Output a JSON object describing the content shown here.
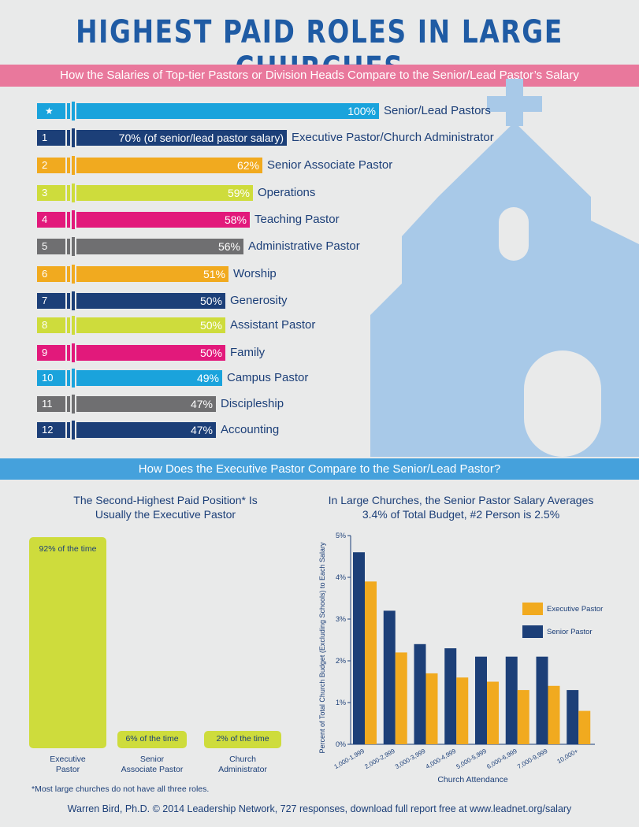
{
  "title": "HIGHEST PAID ROLES IN LARGE CHURCHES",
  "subtitle": "How the Salaries of Top-tier Pastors or Division Heads Compare to the Senior/Lead Pastor’s Salary",
  "colors": {
    "blue": "#1aa3dc",
    "navy": "#1c3f78",
    "orange": "#f1aa1f",
    "lime": "#cedc3c",
    "pink": "#e2197b",
    "gray": "#6f6f71",
    "band_pink": "#e9789c",
    "band_blue": "#45a1dc",
    "church": "#a8c9e8"
  },
  "roles": [
    {
      "rank": "★",
      "value": 100,
      "value_label": "100%",
      "label": "Senior/Lead Pastors",
      "color": "#1aa3dc"
    },
    {
      "rank": "1",
      "value": 70,
      "value_label": "70% (of senior/lead pastor salary)",
      "label": "Executive Pastor/Church Administrator",
      "color": "#1c3f78"
    },
    {
      "rank": "2",
      "value": 62,
      "value_label": "62%",
      "label": "Senior Associate Pastor",
      "color": "#f1aa1f"
    },
    {
      "rank": "3",
      "value": 59,
      "value_label": "59%",
      "label": "Operations",
      "color": "#cedc3c"
    },
    {
      "rank": "4",
      "value": 58,
      "value_label": "58%",
      "label": "Teaching Pastor",
      "color": "#e2197b"
    },
    {
      "rank": "5",
      "value": 56,
      "value_label": "56%",
      "label": "Administrative Pastor",
      "color": "#6f6f71"
    },
    {
      "rank": "6",
      "value": 51,
      "value_label": "51%",
      "label": "Worship",
      "color": "#f1aa1f"
    },
    {
      "rank": "7",
      "value": 50,
      "value_label": "50%",
      "label": "Generosity",
      "color": "#1c3f78"
    },
    {
      "rank": "8",
      "value": 50,
      "value_label": "50%",
      "label": "Assistant Pastor",
      "color": "#cedc3c"
    },
    {
      "rank": "9",
      "value": 50,
      "value_label": "50%",
      "label": "Family",
      "color": "#e2197b"
    },
    {
      "rank": "10",
      "value": 49,
      "value_label": "49%",
      "label": "Campus Pastor",
      "color": "#1aa3dc"
    },
    {
      "rank": "11",
      "value": 47,
      "value_label": "47%",
      "label": "Discipleship",
      "color": "#6f6f71"
    },
    {
      "rank": "12",
      "value": 47,
      "value_label": "47%",
      "label": "Accounting",
      "color": "#1c3f78"
    }
  ],
  "section2_title": "How Does the Executive Pastor Compare to the Senior/Lead Pastor?",
  "left_chart": {
    "title_line1": "The Second-Highest Paid Position* Is",
    "title_line2": "Usually the Executive Pastor",
    "bars": [
      {
        "value": 92,
        "value_label": "92% of the time",
        "label_line1": "Executive",
        "label_line2": "Pastor"
      },
      {
        "value": 6,
        "value_label": "6% of the time",
        "label_line1": "Senior",
        "label_line2": "Associate Pastor"
      },
      {
        "value": 2,
        "value_label": "2% of the time",
        "label_line1": "Church",
        "label_line2": "Administrator"
      }
    ]
  },
  "chart_data": [
    {
      "type": "bar",
      "title": "Highest Paid Roles in Large Churches",
      "categories": [
        "Senior/Lead Pastors",
        "Executive Pastor/Church Administrator",
        "Senior Associate Pastor",
        "Operations",
        "Teaching Pastor",
        "Administrative Pastor",
        "Worship",
        "Generosity",
        "Assistant Pastor",
        "Family",
        "Campus Pastor",
        "Discipleship",
        "Accounting"
      ],
      "values": [
        100,
        70,
        62,
        59,
        58,
        56,
        51,
        50,
        50,
        50,
        49,
        47,
        47
      ],
      "orientation": "horizontal"
    },
    {
      "type": "bar",
      "title": "The Second-Highest Paid Position* Is Usually the Executive Pastor",
      "categories": [
        "Executive Pastor",
        "Senior Associate Pastor",
        "Church Administrator"
      ],
      "values": [
        92,
        6,
        2
      ]
    },
    {
      "type": "bar",
      "title": "In Large Churches, the Senior Pastor Salary Averages 3.4% of Total Budget, #2 Person is 2.5%",
      "title_line1": "In Large Churches, the Senior Pastor Salary Averages",
      "title_line2": "3.4% of Total Budget, #2 Person is 2.5%",
      "xlabel": "Church Attendance",
      "ylabel": "Percent of Total Church Budget (Excluding Schools) to Each Salary",
      "categories": [
        "1,000-1,999",
        "2,000-2,999",
        "3,000-3,999",
        "4,000-4,999",
        "5,000-5,999",
        "6,000-6,999",
        "7,000-9,999",
        "10,000+"
      ],
      "series": [
        {
          "name": "Senior Pastor",
          "color": "#1c3f78",
          "values": [
            4.6,
            3.2,
            2.4,
            2.3,
            2.1,
            2.1,
            2.1,
            1.3
          ]
        },
        {
          "name": "Executive Pastor",
          "color": "#f1aa1f",
          "values": [
            3.9,
            2.2,
            1.7,
            1.6,
            1.5,
            1.3,
            1.4,
            0.8
          ]
        }
      ],
      "ylim": [
        0,
        5
      ],
      "yticks": [
        "0%",
        "1%",
        "2%",
        "3%",
        "4%",
        "5%"
      ],
      "legend": [
        "Executive Pastor",
        "Senior Pastor"
      ],
      "legend_position": "right"
    }
  ],
  "footnote": "*Most large churches do not have all three roles.",
  "credit": "Warren Bird, Ph.D. © 2014 Leadership Network, 727 responses, download full report free at www.leadnet.org/salary"
}
